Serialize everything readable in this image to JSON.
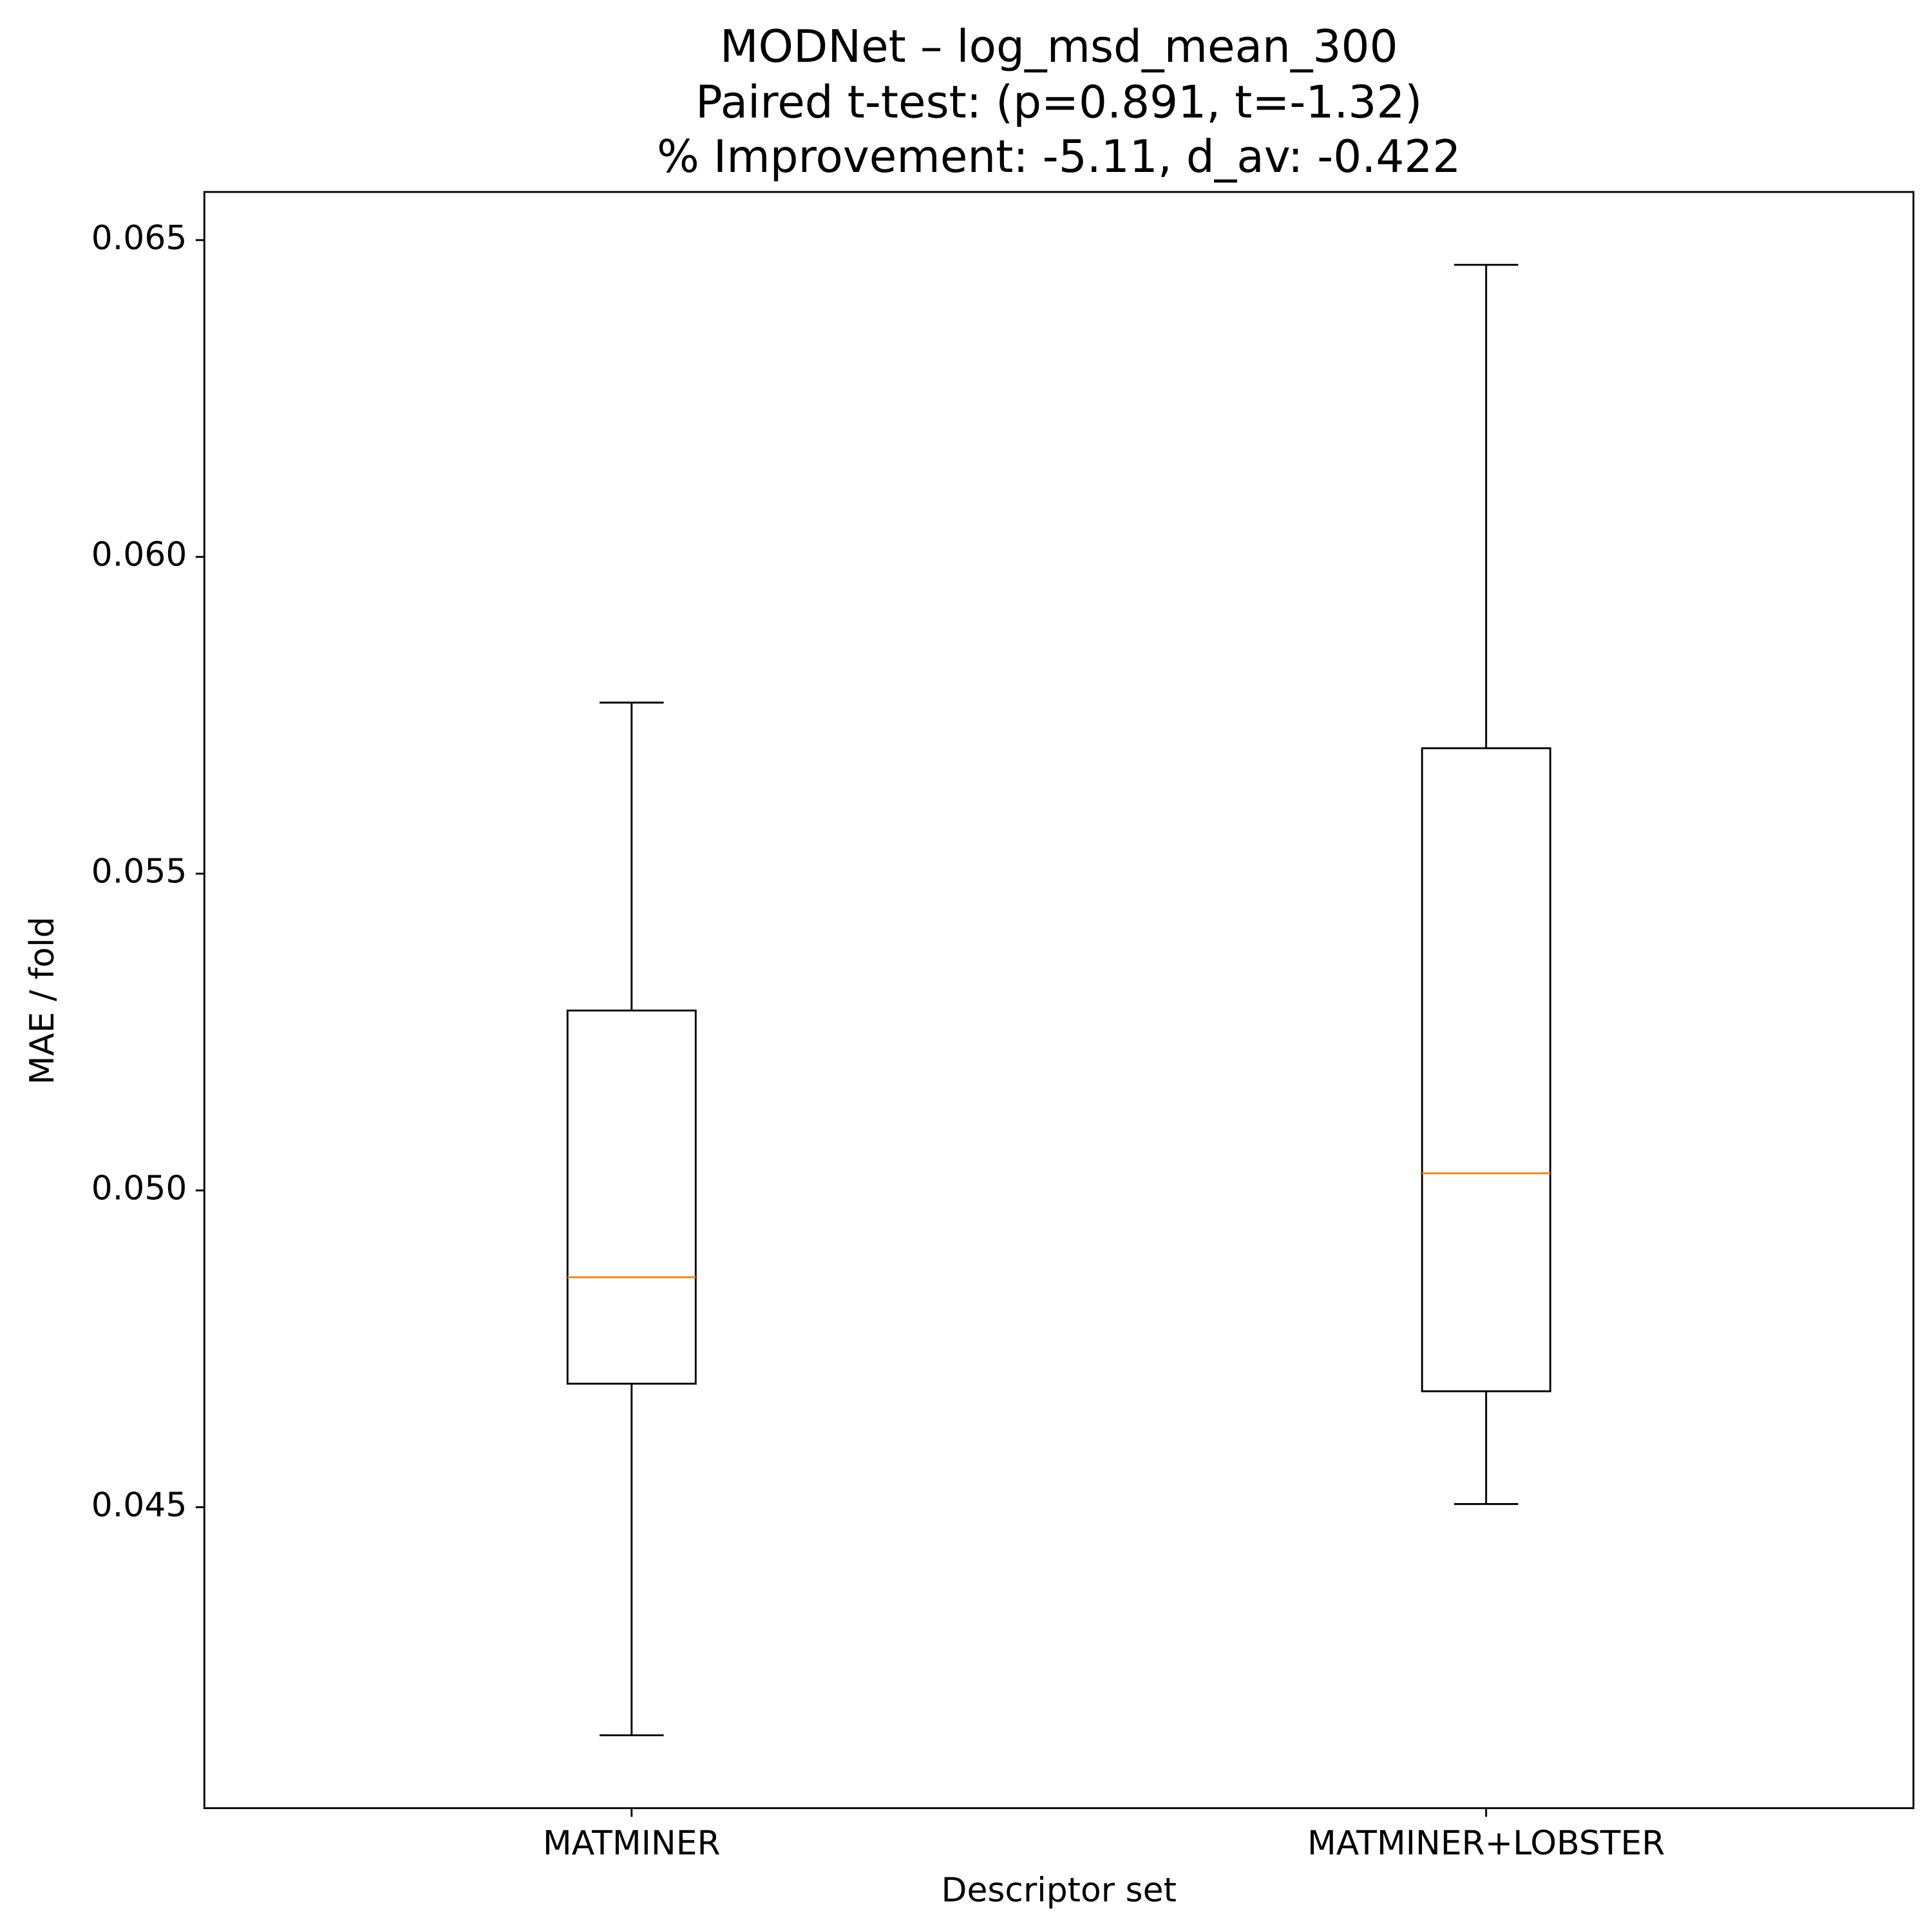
{
  "chart_data": {
    "type": "box",
    "title": [
      "MODNet – log_msd_mean_300",
      "Paired t-test: (p=0.891, t=-1.32)",
      "% Improvement: -5.11, d_av: -0.422"
    ],
    "x_label": "Descriptor set",
    "y_label": "MAE / fold",
    "categories": [
      "MATMINER",
      "MATMINER+LOBSTER"
    ],
    "boxes": [
      {
        "whisker_low": 0.0414,
        "q1": 0.04695,
        "median": 0.04863,
        "q3": 0.05284,
        "whisker_high": 0.0577
      },
      {
        "whisker_low": 0.04505,
        "q1": 0.04683,
        "median": 0.05027,
        "q3": 0.05698,
        "whisker_high": 0.06461
      }
    ],
    "box_color": "#000000",
    "median_color": "#ff7f0e",
    "ylim": [
      0.04025,
      0.06576
    ],
    "yticks": [
      {
        "value": 0.045,
        "label": "0.045"
      },
      {
        "value": 0.05,
        "label": "0.050"
      },
      {
        "value": 0.055,
        "label": "0.055"
      },
      {
        "value": 0.06,
        "label": "0.060"
      },
      {
        "value": 0.065,
        "label": "0.065"
      }
    ],
    "grid": false
  }
}
